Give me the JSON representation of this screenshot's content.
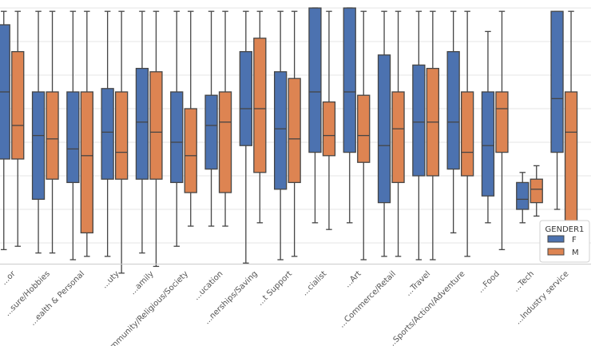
{
  "chart_data": {
    "type": "boxplot",
    "title": "",
    "xlabel": "",
    "ylabel": "",
    "ylim": [
      0,
      8
    ],
    "grid": true,
    "colors": {
      "F": "#4c72b0",
      "M": "#dd8452",
      "grid": "#e6e6e6",
      "whisker": "#454545"
    },
    "legend": {
      "title": "GENDER1",
      "position": "bottom-right",
      "entries": [
        "F",
        "M"
      ]
    },
    "categories": [
      "...or",
      "...sure/Hobbies",
      "...ealth & Personal",
      "...uty",
      "...amily",
      "...ommunity/Religious/Society",
      "...ucation",
      "...nerships/Saving",
      "...t Support",
      "...cialist",
      "...Art",
      "...Commerce/Retail",
      "...Travel",
      "...Sports/Action/Adventure",
      "...Food",
      "...Tech",
      "...Industry service"
    ],
    "series": [
      {
        "name": "F",
        "boxes": [
          {
            "whislo": 0.8,
            "q1": 3.5,
            "med": 5.5,
            "q3": 7.5,
            "whishi": 7.9
          },
          {
            "whislo": 0.7,
            "q1": 2.3,
            "med": 4.2,
            "q3": 5.5,
            "whishi": 7.9
          },
          {
            "whislo": 0.5,
            "q1": 2.8,
            "med": 3.8,
            "q3": 5.5,
            "whishi": 7.9
          },
          {
            "whislo": 0.6,
            "q1": 2.9,
            "med": 4.3,
            "q3": 5.6,
            "whishi": 7.9
          },
          {
            "whislo": 0.7,
            "q1": 2.9,
            "med": 4.6,
            "q3": 6.2,
            "whishi": 7.9
          },
          {
            "whislo": 0.9,
            "q1": 2.8,
            "med": 4.0,
            "q3": 5.5,
            "whishi": 7.9
          },
          {
            "whislo": 1.5,
            "q1": 3.2,
            "med": 4.5,
            "q3": 5.4,
            "whishi": 7.9
          },
          {
            "whislo": 0.4,
            "q1": 3.9,
            "med": 5.0,
            "q3": 6.7,
            "whishi": 7.9
          },
          {
            "whislo": 0.5,
            "q1": 2.6,
            "med": 4.4,
            "q3": 6.1,
            "whishi": 7.9
          },
          {
            "whislo": 1.6,
            "q1": 3.7,
            "med": 5.5,
            "q3": 8.0,
            "whishi": 8.0
          },
          {
            "whislo": 1.6,
            "q1": 3.7,
            "med": 5.5,
            "q3": 8.0,
            "whishi": 8.0
          },
          {
            "whislo": 0.6,
            "q1": 2.2,
            "med": 3.9,
            "q3": 6.6,
            "whishi": 7.9
          },
          {
            "whislo": 0.5,
            "q1": 3.0,
            "med": 4.6,
            "q3": 6.3,
            "whishi": 7.9
          },
          {
            "whislo": 1.3,
            "q1": 3.2,
            "med": 4.6,
            "q3": 6.7,
            "whishi": 7.9
          },
          {
            "whislo": 1.6,
            "q1": 2.4,
            "med": 3.9,
            "q3": 5.5,
            "whishi": 7.3
          },
          {
            "whislo": 1.6,
            "q1": 2.0,
            "med": 2.3,
            "q3": 2.8,
            "whishi": 3.1
          },
          {
            "whislo": 2.0,
            "q1": 3.7,
            "med": 5.3,
            "q3": 7.9,
            "whishi": 7.9
          }
        ]
      },
      {
        "name": "M",
        "boxes": [
          {
            "whislo": 0.9,
            "q1": 3.5,
            "med": 4.5,
            "q3": 6.7,
            "whishi": 7.9
          },
          {
            "whislo": 0.7,
            "q1": 2.9,
            "med": 4.1,
            "q3": 5.5,
            "whishi": 7.9
          },
          {
            "whislo": 0.6,
            "q1": 1.3,
            "med": 3.6,
            "q3": 5.5,
            "whishi": 7.9
          },
          {
            "whislo": 0.1,
            "q1": 2.9,
            "med": 3.7,
            "q3": 5.5,
            "whishi": 7.9
          },
          {
            "whislo": 0.3,
            "q1": 2.9,
            "med": 4.3,
            "q3": 6.1,
            "whishi": 7.9
          },
          {
            "whislo": 1.5,
            "q1": 2.5,
            "med": 3.6,
            "q3": 5.0,
            "whishi": 7.9
          },
          {
            "whislo": 1.5,
            "q1": 2.5,
            "med": 4.6,
            "q3": 5.5,
            "whishi": 7.9
          },
          {
            "whislo": 1.6,
            "q1": 3.1,
            "med": 5.0,
            "q3": 7.1,
            "whishi": 7.9
          },
          {
            "whislo": 0.6,
            "q1": 2.8,
            "med": 4.1,
            "q3": 5.9,
            "whishi": 7.9
          },
          {
            "whislo": 1.4,
            "q1": 3.6,
            "med": 4.2,
            "q3": 5.2,
            "whishi": 7.9
          },
          {
            "whislo": 0.5,
            "q1": 3.4,
            "med": 4.2,
            "q3": 5.4,
            "whishi": 7.9
          },
          {
            "whislo": 0.6,
            "q1": 2.8,
            "med": 4.4,
            "q3": 5.5,
            "whishi": 7.9
          },
          {
            "whislo": 0.5,
            "q1": 3.0,
            "med": 4.6,
            "q3": 6.2,
            "whishi": 7.9
          },
          {
            "whislo": 0.6,
            "q1": 3.0,
            "med": 3.7,
            "q3": 5.5,
            "whishi": 7.9
          },
          {
            "whislo": 0.8,
            "q1": 3.7,
            "med": 5.0,
            "q3": 5.5,
            "whishi": 7.9
          },
          {
            "whislo": 1.8,
            "q1": 2.2,
            "med": 2.6,
            "q3": 2.9,
            "whishi": 3.3
          },
          {
            "whislo": 1.6,
            "q1": 1.6,
            "med": 4.3,
            "q3": 5.5,
            "whishi": 7.9
          }
        ]
      }
    ]
  }
}
